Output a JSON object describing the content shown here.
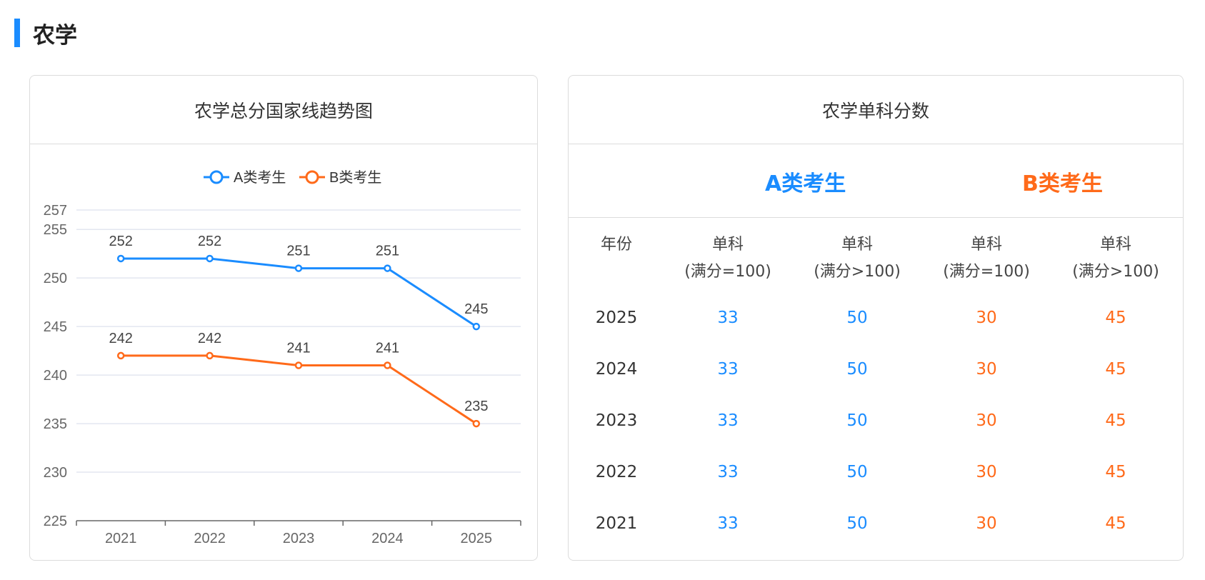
{
  "section": {
    "title": "农学"
  },
  "chart_card": {
    "title": "农学总分国家线趋势图"
  },
  "chart_data": {
    "type": "line",
    "categories": [
      "2021",
      "2022",
      "2023",
      "2024",
      "2025"
    ],
    "series": [
      {
        "name": "A类考生",
        "values": [
          252,
          252,
          251,
          251,
          245
        ],
        "color": "#1a8cff"
      },
      {
        "name": "B类考生",
        "values": [
          242,
          242,
          241,
          241,
          235
        ],
        "color": "#ff6a1a"
      }
    ],
    "yticks": [
      225,
      230,
      235,
      240,
      245,
      250,
      255,
      257
    ],
    "ylim": [
      225,
      257
    ],
    "grid": true,
    "legend": "top-center"
  },
  "table_card": {
    "title": "农学单科分数",
    "class_a": "A类考生",
    "class_b": "B类考生",
    "headers": {
      "year": "年份",
      "c1_l1": "单科",
      "c1_l2": "(满分=100)",
      "c2_l1": "单科",
      "c2_l2": "(满分>100)",
      "c3_l1": "单科",
      "c3_l2": "(满分=100)",
      "c4_l1": "单科",
      "c4_l2": "(满分>100)"
    },
    "rows": [
      {
        "year": "2025",
        "a1": "33",
        "a2": "50",
        "b1": "30",
        "b2": "45"
      },
      {
        "year": "2024",
        "a1": "33",
        "a2": "50",
        "b1": "30",
        "b2": "45"
      },
      {
        "year": "2023",
        "a1": "33",
        "a2": "50",
        "b1": "30",
        "b2": "45"
      },
      {
        "year": "2022",
        "a1": "33",
        "a2": "50",
        "b1": "30",
        "b2": "45"
      },
      {
        "year": "2021",
        "a1": "33",
        "a2": "50",
        "b1": "30",
        "b2": "45"
      }
    ]
  }
}
